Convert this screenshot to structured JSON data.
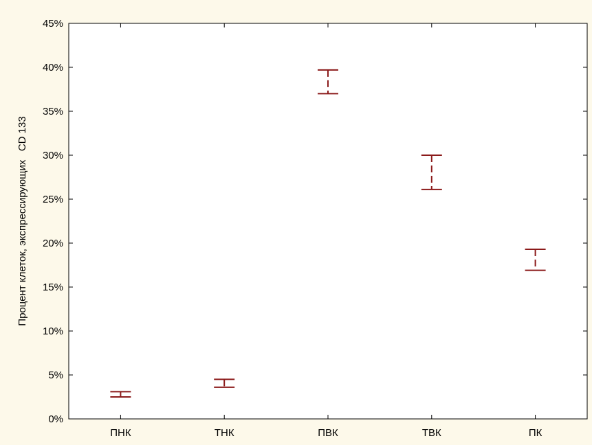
{
  "chart_data": {
    "type": "errorbar",
    "title": "",
    "xlabel": "",
    "ylabel": "Процент клеток, экспрессирующих   CD 133",
    "categories": [
      "ПНК",
      "ТНК",
      "ПВК",
      "ТВК",
      "ПК"
    ],
    "series": [
      {
        "lower": [
          2.5,
          3.6,
          37.0,
          26.1,
          16.9
        ],
        "upper": [
          3.1,
          4.5,
          39.7,
          30.0,
          19.3
        ]
      }
    ],
    "ylim": [
      0,
      45
    ],
    "yticks": [
      0,
      5,
      10,
      15,
      20,
      25,
      30,
      35,
      40,
      45
    ],
    "ytick_labels": [
      "0%",
      "5%",
      "10%",
      "15%",
      "20%",
      "25%",
      "30%",
      "35%",
      "40%",
      "45%"
    ],
    "grid": false,
    "legend": "none",
    "colors": {
      "errorbar": "#8b1a1a",
      "background": "#fdf9ea",
      "plot_area": "#ffffff",
      "axis": "#000000"
    }
  }
}
